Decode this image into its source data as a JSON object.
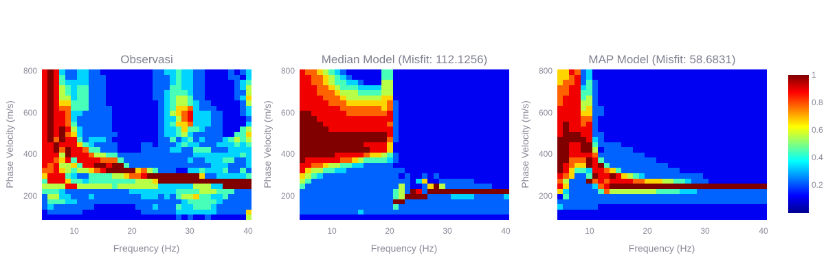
{
  "chart_data": [
    {
      "type": "heatmap",
      "title": "Observasi",
      "xlabel": "Frequency (Hz)",
      "ylabel": "Phase Velocity (m/s)",
      "x_ticks": [
        "10",
        "20",
        "30",
        "40"
      ],
      "y_ticks": [
        "800",
        "600",
        "400",
        "200"
      ],
      "x_range": [
        4.5,
        40.5
      ],
      "y_range": [
        87.5,
        812.5
      ],
      "x": "5..40 step 1",
      "y": "800..100 step 25 (top to bottom)",
      "z_encoding": "each row string: digit d => value d/9 (0..1)",
      "z_rows": [
        "898322332211111111122334332211112123",
        "898422332221111111122234332211112213",
        "898433332221111111122234332211111234",
        "898543442221111111122244332211111235",
        "898543442221111111122344432211111225",
        "898553442221111111122345542211111236",
        "898664442221111111112345543221111125",
        "898774442222111111112346673222111123",
        "898873322222111111112356783332211123",
        "898873222222111111112335783332211112",
        "898874222222111111112346673332211113",
        "898985322222111111112334644322211145",
        "898976322222211111112334532222211446",
        "897988423332111111112242342322234545",
        "889888643222211112212223433222333434",
        "889798874422211112222233224442223333",
        "888598887554422222222222223333333343",
        "887684888877742222222222232233344223",
        "878556488998994222222222222223332223",
        "778654556789999967542221133433342242",
        "688843224444556778999999999622333334",
        "488864434444444455569999999999999999",
        "555588555555455555553333335553399999",
        "444322222222222333333334444555444222",
        "255332223222222223332324556443342222",
        "244433222222222222222222344444322222",
        "232222222111111122232224334443222222",
        "122222211111111112222223333333222226",
        "111111111111111111111112121121111115"
      ]
    },
    {
      "type": "heatmap",
      "title": "Median Model (Misfit: 112.1256)",
      "xlabel": "Frequency (Hz)",
      "ylabel": "Phase Velocity (m/s)",
      "x_ticks": [
        "10",
        "20",
        "30",
        "40"
      ],
      "y_ticks": [
        "800",
        "600",
        "400",
        "200"
      ],
      "x_range": [
        4.5,
        40.5
      ],
      "y_range": [
        87.5,
        812.5
      ],
      "x": "5..40 step 1",
      "y": "800..100 step 25 (top to bottom)",
      "z_encoding": "each row string: digit d => value d/9 (0..1)",
      "z_rows": [
        "877654321111114411111111111111111111",
        "887765432111114411111111111111111111",
        "887765443321115511111111111111111111",
        "888776544433335511111111111111111111",
        "888777655544445511111111111111111111",
        "888877765555556611111111111111111111",
        "888887776666666721111111111111111111",
        "888888877777776721111111111111111111",
        "998888887777777821111111111111111111",
        "999888888888888821111111111111111111",
        "999988888888888721111111111111111111",
        "999998888888888821111111111111111111",
        "999999999999999821111111111111111111",
        "999999999999999721111111111111111111",
        "999999999998888611111111111111111111",
        "999999999999888611111111111111111111",
        "999999888887665421111111111111111111",
        "988888877654444321111111111111111111",
        "887765544332222211111111111111111111",
        "865544332222222222111111111111111111",
        "654322222222222221211212111111111111",
        "542222222222222222213611222222111111",
        "422222222222222225211269522222222111",
        "222222222222222245298299999999999999",
        "222222222222222245999922223333222223",
        "222222222222222299222222222222222222",
        "222222222222222242222222222222222222",
        "222222222232222222222222222222222222",
        "111111111111111111111111111111111111"
      ]
    },
    {
      "type": "heatmap",
      "title": "MAP Model (Misfit: 58.6831)",
      "xlabel": "Frequency (Hz)",
      "ylabel": "Phase Velocity (m/s)",
      "x_ticks": [
        "10",
        "20",
        "30",
        "40"
      ],
      "y_ticks": [
        "800",
        "600",
        "400",
        "200"
      ],
      "x_range": [
        4.5,
        40.5
      ],
      "y_range": [
        87.5,
        812.5
      ],
      "x": "5..40 step 1",
      "y": "800..100 step 25 (top to bottom)",
      "z_encoding": "each row string: digit d => value d/9 (0..1)",
      "z_rows": [
        "668723111111111111111111111111111111",
        "667823111111111111111111111111111111",
        "677824211111111111111111111111111111",
        "778834211111111111111111111111111111",
        "778844211111111111111111111111111111",
        "788845211111111111111111111111111111",
        "788855211111111111111111111111111111",
        "888856221111111111111111111111111111",
        "888866221111111111111111111111111111",
        "888877211111111111111111111111111111",
        "898878211111111111111111111111111111",
        "898888211111111111111111111111111111",
        "899988221111111111111111111111111111",
        "999998321111111111111111111111111111",
        "998899422221111111111111111111111111",
        "998899512222211111111111111111111111",
        "998888722222222111111111111111111111",
        "997779842222222221111111111111111111",
        "987669894222222222211111111111111111",
        "986443887642222222222111111111111111",
        "876224988986543222222222211111111111",
        "752229787888877666554432221111111111",
        "862222378999999999999999999999999999",
        "632222247555555554444333222222222222",
        "142222222222222222222222222222222222",
        "222222222222222222222222222222222222",
        "322222211111111111111111111111111111",
        "111111111111111111111111111111111111",
        "111111111111111111111111111111111111"
      ]
    }
  ],
  "colorbar": {
    "ticks": [
      "1",
      "0.8",
      "0.6",
      "0.4",
      "0.2"
    ],
    "colormap": [
      "#00008f",
      "#0000ff",
      "#00ffff",
      "#ffff00",
      "#ff0000",
      "#800000"
    ]
  },
  "panels": [
    {
      "title": "Observasi"
    },
    {
      "title": "Median Model (Misfit: 112.1256)"
    },
    {
      "title": "MAP Model (Misfit: 58.6831)"
    }
  ],
  "axes": {
    "xlabel": "Frequency (Hz)",
    "ylabel": "Phase Velocity (m/s)",
    "x_ticks": [
      "10",
      "20",
      "30",
      "40"
    ],
    "y_ticks": [
      "800",
      "600",
      "400",
      "200"
    ]
  }
}
